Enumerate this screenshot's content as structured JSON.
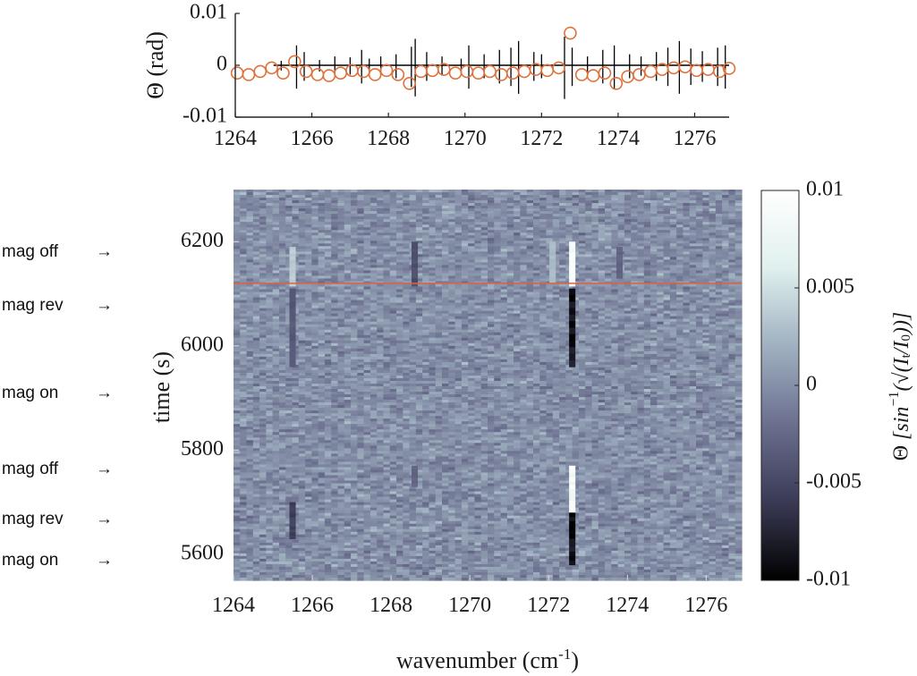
{
  "chart_data": [
    {
      "type": "scatter",
      "ylabel": "Θ (rad)",
      "xlim": [
        1264,
        1276.9
      ],
      "ylim": [
        -0.01,
        0.01
      ],
      "x_ticks": [
        "1264",
        "1266",
        "1268",
        "1270",
        "1272",
        "1274",
        "1276"
      ],
      "y_ticks": [
        "0.01",
        "0",
        "-0.01"
      ],
      "grid": false,
      "series": [
        {
          "style": "black vertical spikes",
          "color": "#000000",
          "x": [
            1265.2,
            1265.6,
            1265.8,
            1266.2,
            1266.6,
            1267.0,
            1267.3,
            1267.5,
            1267.8,
            1268.2,
            1268.6,
            1268.7,
            1269.0,
            1269.4,
            1269.9,
            1270.1,
            1270.5,
            1270.9,
            1271.2,
            1271.4,
            1271.8,
            1272.0,
            1272.6,
            1272.8,
            1273.2,
            1273.6,
            1273.9,
            1274.3,
            1274.6,
            1275.0,
            1275.3,
            1275.6,
            1275.9,
            1276.2,
            1276.6,
            1276.8
          ],
          "amplitude": [
            0.001,
            0.0045,
            0.003,
            0.0012,
            0.002,
            0.0018,
            0.0035,
            0.0015,
            0.002,
            0.0025,
            0.0042,
            0.006,
            0.003,
            0.002,
            0.0015,
            0.0045,
            0.0025,
            0.0035,
            0.004,
            0.0055,
            0.003,
            0.0025,
            0.0065,
            0.004,
            0.002,
            0.0035,
            0.0045,
            0.0025,
            0.002,
            0.003,
            0.004,
            0.0055,
            0.0038,
            0.0032,
            0.004,
            0.0045
          ]
        },
        {
          "style": "open circles",
          "color": "#e0703a",
          "x": [
            1264.05,
            1264.35,
            1264.65,
            1264.95,
            1265.25,
            1265.55,
            1265.85,
            1266.15,
            1266.45,
            1266.75,
            1267.05,
            1267.35,
            1267.65,
            1267.95,
            1268.25,
            1268.55,
            1268.85,
            1269.15,
            1269.45,
            1269.75,
            1270.05,
            1270.35,
            1270.65,
            1270.95,
            1271.25,
            1271.55,
            1271.85,
            1272.15,
            1272.45,
            1272.75,
            1273.05,
            1273.35,
            1273.65,
            1273.95,
            1274.25,
            1274.55,
            1274.85,
            1275.15,
            1275.45,
            1275.75,
            1276.05,
            1276.35,
            1276.65,
            1276.9
          ],
          "y": [
            -0.0015,
            -0.0018,
            -0.0012,
            -0.0005,
            -0.0015,
            0.0007,
            -0.0012,
            -0.0018,
            -0.002,
            -0.0015,
            -0.001,
            -0.0012,
            -0.0018,
            -0.001,
            -0.0018,
            -0.0035,
            -0.0012,
            -0.001,
            -0.0008,
            -0.0015,
            -0.0012,
            -0.0015,
            -0.0012,
            -0.0018,
            -0.0015,
            -0.0012,
            -0.0008,
            -0.001,
            -0.0005,
            0.0062,
            -0.0018,
            -0.002,
            -0.0015,
            -0.0035,
            -0.0022,
            -0.0018,
            -0.0012,
            -0.0008,
            -0.0005,
            -0.0003,
            -0.001,
            -0.0008,
            -0.0012,
            -0.0006
          ]
        }
      ]
    },
    {
      "type": "heatmap",
      "xlabel": "wavenumber (cm-1)",
      "xlabel_base": "wavenumber (cm",
      "xlabel_sup": "-1",
      "xlabel_close": ")",
      "ylabel": "time (s)",
      "xlim": [
        1264,
        1276.9
      ],
      "ylim": [
        5550,
        6300
      ],
      "x_ticks": [
        "1264",
        "1266",
        "1268",
        "1270",
        "1272",
        "1274",
        "1276"
      ],
      "y_ticks": [
        "6200",
        "6000",
        "5800",
        "5600"
      ],
      "colorbar": {
        "ticks": [
          "0.01",
          "0.005",
          "0",
          "-0.005",
          "-0.01"
        ],
        "range": [
          -0.01,
          0.01
        ],
        "label": "Θ [sin⁻¹(√(It/I0))]",
        "colormap": [
          "#000000",
          "#3a3a55",
          "#6b6f8e",
          "#9fb0c0",
          "#dff0ee",
          "#ffffff"
        ]
      },
      "marker_line": {
        "time": 6120,
        "color": "#e06040"
      },
      "features": [
        {
          "wavenumber": 1265.5,
          "time_start": 6115,
          "time_end": 6190,
          "value": 0.004
        },
        {
          "wavenumber": 1265.5,
          "time_start": 5960,
          "time_end": 6110,
          "value": -0.004
        },
        {
          "wavenumber": 1265.5,
          "time_start": 5630,
          "time_end": 5700,
          "value": -0.006
        },
        {
          "wavenumber": 1268.6,
          "time_start": 6115,
          "time_end": 6200,
          "value": -0.005
        },
        {
          "wavenumber": 1268.6,
          "time_start": 5730,
          "time_end": 5770,
          "value": -0.003
        },
        {
          "wavenumber": 1272.6,
          "time_start": 6115,
          "time_end": 6200,
          "value": 0.0095
        },
        {
          "wavenumber": 1272.6,
          "time_start": 5960,
          "time_end": 6110,
          "value": -0.0095
        },
        {
          "wavenumber": 1272.6,
          "time_start": 5680,
          "time_end": 5770,
          "value": 0.0095
        },
        {
          "wavenumber": 1272.6,
          "time_start": 5580,
          "time_end": 5680,
          "value": -0.0095
        },
        {
          "wavenumber": 1272.1,
          "time_start": 6120,
          "time_end": 6200,
          "value": 0.003
        },
        {
          "wavenumber": 1273.8,
          "time_start": 6130,
          "time_end": 6190,
          "value": -0.003
        }
      ]
    }
  ],
  "annotations": [
    {
      "text": "mag off",
      "arrow": "→"
    },
    {
      "text": "mag rev",
      "arrow": "→"
    },
    {
      "text": "mag on",
      "arrow": "→"
    },
    {
      "text": "mag off",
      "arrow": "→"
    },
    {
      "text": "mag rev",
      "arrow": "→"
    },
    {
      "text": "mag on",
      "arrow": "→"
    }
  ]
}
